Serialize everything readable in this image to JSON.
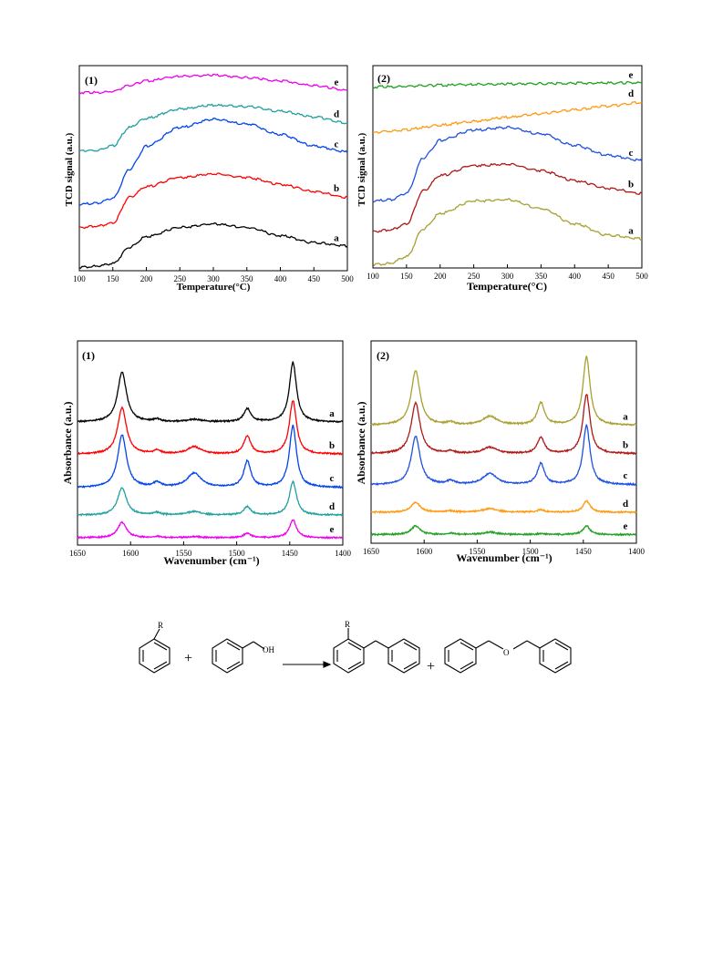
{
  "figure_tpd": {
    "panel_1": {
      "panel_label": "(1)",
      "xlabel": "Temperature(°C)",
      "ylabel": "TCD signal (a.u.)"
    },
    "panel_2": {
      "panel_label": "(2)",
      "xlabel": "Temperature(°C)",
      "ylabel": "TCD signal (a.u.)"
    }
  },
  "figure_ir": {
    "panel_1": {
      "panel_label": "(1)",
      "xlabel": "Wavenumber (cm⁻¹)",
      "ylabel": "Absorbance (a.u.)"
    },
    "panel_2": {
      "panel_label": "(2)",
      "xlabel": "Wavenumber (cm⁻¹)",
      "ylabel": "Absorbance (a.u.)"
    }
  },
  "scheme": {
    "substituent_label": "R",
    "hydroxyl_label": "OH",
    "ether_oxygen_label": "O",
    "plus_sign": "+",
    "product_substituent_label": "R"
  },
  "chart_data": [
    {
      "type": "line",
      "panel": "(1)",
      "xlabel": "Temperature(°C)",
      "ylabel": "TCD signal (a.u.)",
      "xlim": [
        100,
        500
      ],
      "xticks": [
        100,
        150,
        200,
        250,
        300,
        350,
        400,
        450,
        500
      ],
      "y_ticks_shown": false,
      "grid": false,
      "x": [
        100,
        125,
        150,
        175,
        200,
        250,
        300,
        350,
        400,
        450,
        500
      ],
      "series": [
        {
          "name": "a",
          "color": "#000000",
          "values": [
            0.0,
            0.3,
            1.5,
            8.5,
            13.0,
            17.0,
            18.5,
            17.0,
            13.5,
            10.5,
            9.0
          ]
        },
        {
          "name": "b",
          "color": "#ff0000",
          "values": [
            17.0,
            17.5,
            19.0,
            30.0,
            34.5,
            38.5,
            40.0,
            38.5,
            35.5,
            32.5,
            30.0
          ]
        },
        {
          "name": "c",
          "color": "#0044ee",
          "values": [
            27.0,
            27.5,
            29.5,
            42.0,
            52.0,
            60.0,
            63.5,
            61.5,
            57.0,
            52.0,
            49.5
          ]
        },
        {
          "name": "d",
          "color": "#20a0a0",
          "values": [
            50.0,
            50.0,
            52.0,
            60.0,
            64.0,
            68.0,
            69.5,
            69.0,
            67.0,
            64.5,
            62.0
          ]
        },
        {
          "name": "e",
          "color": "#ee00ee",
          "values": [
            75.0,
            75.0,
            75.5,
            78.0,
            80.0,
            82.0,
            82.5,
            81.5,
            80.0,
            78.0,
            76.0
          ]
        }
      ],
      "series_labels": [
        "a",
        "b",
        "c",
        "d",
        "e"
      ]
    },
    {
      "type": "line",
      "panel": "(2)",
      "xlabel": "Temperature(°C)",
      "ylabel": "TCD signal (a.u.)",
      "xlim": [
        100,
        500
      ],
      "xticks": [
        100,
        150,
        200,
        250,
        300,
        350,
        400,
        450,
        500
      ],
      "y_ticks_shown": false,
      "grid": false,
      "x": [
        100,
        125,
        150,
        175,
        200,
        250,
        300,
        350,
        400,
        450,
        500
      ],
      "series": [
        {
          "name": "a",
          "color": "#a8a030",
          "values": [
            0.0,
            0.3,
            3.0,
            14.0,
            20.0,
            25.0,
            25.5,
            22.0,
            16.0,
            11.5,
            10.0
          ]
        },
        {
          "name": "b",
          "color": "#b01818",
          "values": [
            13.0,
            13.5,
            16.0,
            29.0,
            35.0,
            39.0,
            39.5,
            37.0,
            33.0,
            30.0,
            28.0
          ]
        },
        {
          "name": "c",
          "color": "#2050e0",
          "values": [
            25.0,
            25.5,
            28.0,
            42.0,
            49.0,
            53.0,
            54.0,
            51.5,
            47.0,
            43.0,
            41.0
          ]
        },
        {
          "name": "d",
          "color": "#ff9910",
          "values": [
            52.0,
            52.5,
            53.0,
            54.0,
            55.0,
            56.5,
            58.0,
            59.5,
            61.0,
            62.5,
            64.0
          ]
        },
        {
          "name": "e",
          "color": "#20a020",
          "values": [
            70.0,
            70.1,
            70.3,
            70.5,
            70.7,
            71.0,
            71.2,
            71.4,
            71.5,
            71.6,
            71.7
          ]
        }
      ],
      "series_labels": [
        "a",
        "b",
        "c",
        "d",
        "e"
      ]
    },
    {
      "type": "line",
      "panel": "(1)",
      "xlabel": "Wavenumber (cm⁻¹)",
      "ylabel": "Absorbance (a.u.)",
      "xlim": [
        1650,
        1400
      ],
      "xticks": [
        1650,
        1600,
        1550,
        1500,
        1450,
        1400
      ],
      "y_ticks_shown": false,
      "grid": false,
      "peak_positions": [
        1608,
        1575,
        1540,
        1490,
        1447
      ],
      "series": [
        {
          "name": "a",
          "color": "#000000",
          "baseline": 100,
          "peaks": [
            42,
            2,
            2,
            11,
            50
          ]
        },
        {
          "name": "b",
          "color": "#ff0000",
          "baseline": 73,
          "peaks": [
            39,
            3,
            6,
            15,
            45
          ]
        },
        {
          "name": "c",
          "color": "#0044ee",
          "baseline": 45,
          "peaks": [
            44,
            4,
            12,
            22,
            52
          ]
        },
        {
          "name": "d",
          "color": "#20a0a0",
          "baseline": 22,
          "peaks": [
            23,
            2,
            3,
            7,
            28
          ]
        },
        {
          "name": "e",
          "color": "#ee00ee",
          "baseline": 3,
          "peaks": [
            13,
            1,
            1,
            4,
            15
          ]
        }
      ],
      "series_labels": [
        "a",
        "b",
        "c",
        "d",
        "e"
      ]
    },
    {
      "type": "line",
      "panel": "(2)",
      "xlabel": "Wavenumber (cm⁻¹)",
      "ylabel": "Absorbance (a.u.)",
      "xlim": [
        1650,
        1400
      ],
      "xticks": [
        1650,
        1600,
        1550,
        1500,
        1450,
        1400
      ],
      "y_ticks_shown": false,
      "grid": false,
      "peak_positions": [
        1608,
        1575,
        1538,
        1490,
        1447
      ],
      "series": [
        {
          "name": "a",
          "color": "#a8a030",
          "baseline": 92,
          "peaks": [
            44,
            2,
            7,
            18,
            55
          ]
        },
        {
          "name": "b",
          "color": "#b01818",
          "baseline": 69,
          "peaks": [
            41,
            2,
            5,
            13,
            48
          ]
        },
        {
          "name": "c",
          "color": "#2050e0",
          "baseline": 44,
          "peaks": [
            39,
            3,
            9,
            17,
            48
          ]
        },
        {
          "name": "d",
          "color": "#ff9910",
          "baseline": 22,
          "peaks": [
            8,
            1,
            3,
            2,
            9
          ]
        },
        {
          "name": "e",
          "color": "#20a020",
          "baseline": 4,
          "peaks": [
            7,
            1,
            2,
            1,
            7
          ]
        }
      ],
      "series_labels": [
        "a",
        "b",
        "c",
        "d",
        "e"
      ]
    }
  ]
}
